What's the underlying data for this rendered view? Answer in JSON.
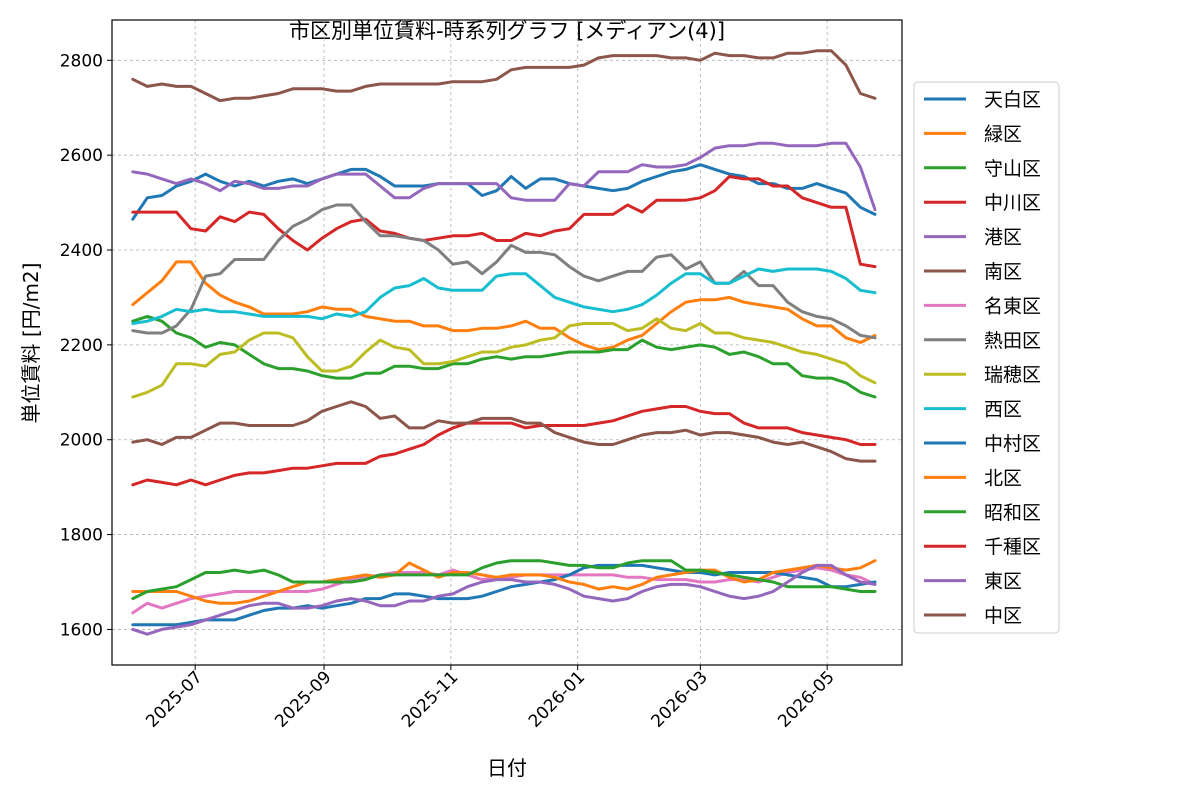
{
  "chart_data": {
    "type": "line",
    "title": "市区別単位賃料-時系列グラフ [メディアン(4)]",
    "xlabel": "日付",
    "ylabel": "単位賃料 [円/m2]",
    "xlim": [
      "2025-05-22",
      "2026-06-06"
    ],
    "ylim": [
      1525,
      2885
    ],
    "x_ticks": [
      "2025-07-01",
      "2025-09-01",
      "2025-11-01",
      "2026-01-01",
      "2026-03-01",
      "2026-05-01"
    ],
    "x_tick_labels": [
      "2025-07",
      "2025-09",
      "2025-11",
      "2026-01",
      "2026-03",
      "2026-05"
    ],
    "y_ticks": [
      1600,
      1800,
      2000,
      2200,
      2400,
      2600,
      2800
    ],
    "y_tick_labels": [
      "1600",
      "1800",
      "2000",
      "2200",
      "2400",
      "2600",
      "2800"
    ],
    "grid": true,
    "legend_position": "outside-right",
    "x_dates": [
      "2025-06-01",
      "2025-06-08",
      "2025-06-15",
      "2025-06-22",
      "2025-06-29",
      "2025-07-06",
      "2025-07-13",
      "2025-07-20",
      "2025-07-27",
      "2025-08-03",
      "2025-08-10",
      "2025-08-17",
      "2025-08-24",
      "2025-08-31",
      "2025-09-07",
      "2025-09-14",
      "2025-09-21",
      "2025-09-28",
      "2025-10-05",
      "2025-10-12",
      "2025-10-19",
      "2025-10-26",
      "2025-11-02",
      "2025-11-09",
      "2025-11-16",
      "2025-11-23",
      "2025-11-30",
      "2025-12-07",
      "2025-12-14",
      "2025-12-21",
      "2025-12-28",
      "2026-01-04",
      "2026-01-11",
      "2026-01-18",
      "2026-01-25",
      "2026-02-01",
      "2026-02-08",
      "2026-02-15",
      "2026-02-22",
      "2026-03-01",
      "2026-03-08",
      "2026-03-15",
      "2026-03-22",
      "2026-03-29",
      "2026-04-05",
      "2026-04-12",
      "2026-04-19",
      "2026-04-26",
      "2026-05-03",
      "2026-05-10",
      "2026-05-17",
      "2026-05-24"
    ],
    "series": [
      {
        "name": "天白区",
        "color": "#1f77b4",
        "values": [
          2465,
          2510,
          2515,
          2535,
          2545,
          2560,
          2545,
          2535,
          2545,
          2535,
          2545,
          2550,
          2540,
          2550,
          2560,
          2570,
          2570,
          2555,
          2535,
          2535,
          2535,
          2540,
          2540,
          2540,
          2515,
          2525,
          2555,
          2530,
          2550,
          2550,
          2540,
          2535,
          2530,
          2525,
          2530,
          2545,
          2555,
          2565,
          2570,
          2580,
          2570,
          2560,
          2555,
          2540,
          2540,
          2530,
          2530,
          2540,
          2530,
          2520,
          2490,
          2475
        ]
      },
      {
        "name": "緑区",
        "color": "#ff7f0e",
        "values": [
          2285,
          2310,
          2335,
          2375,
          2375,
          2330,
          2305,
          2290,
          2280,
          2265,
          2265,
          2265,
          2270,
          2280,
          2275,
          2275,
          2260,
          2255,
          2250,
          2250,
          2240,
          2240,
          2230,
          2230,
          2235,
          2235,
          2240,
          2250,
          2235,
          2235,
          2215,
          2200,
          2190,
          2195,
          2210,
          2220,
          2245,
          2270,
          2290,
          2295,
          2295,
          2300,
          2290,
          2285,
          2280,
          2275,
          2255,
          2240,
          2240,
          2215,
          2205,
          2220
        ]
      },
      {
        "name": "守山区",
        "color": "#2ca02c",
        "values": [
          2250,
          2260,
          2250,
          2225,
          2215,
          2195,
          2205,
          2200,
          2180,
          2160,
          2150,
          2150,
          2145,
          2135,
          2130,
          2130,
          2140,
          2140,
          2155,
          2155,
          2150,
          2150,
          2160,
          2160,
          2170,
          2175,
          2170,
          2175,
          2175,
          2180,
          2185,
          2185,
          2185,
          2190,
          2190,
          2210,
          2195,
          2190,
          2195,
          2200,
          2195,
          2180,
          2185,
          2175,
          2160,
          2160,
          2135,
          2130,
          2130,
          2120,
          2100,
          2090
        ]
      },
      {
        "name": "中川区",
        "color": "#d62728",
        "values": [
          2480,
          2480,
          2480,
          2480,
          2445,
          2440,
          2470,
          2460,
          2480,
          2475,
          2445,
          2420,
          2400,
          2425,
          2445,
          2460,
          2465,
          2440,
          2435,
          2425,
          2420,
          2425,
          2430,
          2430,
          2435,
          2420,
          2420,
          2435,
          2430,
          2440,
          2445,
          2475,
          2475,
          2475,
          2495,
          2480,
          2505,
          2505,
          2505,
          2510,
          2525,
          2555,
          2550,
          2550,
          2535,
          2535,
          2510,
          2500,
          2490,
          2490,
          2370,
          2365
        ]
      },
      {
        "name": "港区",
        "color": "#9467bd",
        "values": [
          2565,
          2560,
          2550,
          2540,
          2550,
          2540,
          2525,
          2545,
          2540,
          2530,
          2530,
          2535,
          2535,
          2550,
          2560,
          2560,
          2560,
          2535,
          2510,
          2510,
          2530,
          2540,
          2540,
          2540,
          2540,
          2540,
          2510,
          2505,
          2505,
          2505,
          2540,
          2535,
          2565,
          2565,
          2565,
          2580,
          2575,
          2575,
          2580,
          2595,
          2615,
          2620,
          2620,
          2625,
          2625,
          2620,
          2620,
          2620,
          2625,
          2625,
          2575,
          2485
        ]
      },
      {
        "name": "南区",
        "color": "#8c564b",
        "values": [
          2760,
          2745,
          2750,
          2745,
          2745,
          2730,
          2715,
          2720,
          2720,
          2725,
          2730,
          2740,
          2740,
          2740,
          2735,
          2735,
          2745,
          2750,
          2750,
          2750,
          2750,
          2750,
          2755,
          2755,
          2755,
          2760,
          2780,
          2785,
          2785,
          2785,
          2785,
          2790,
          2805,
          2810,
          2810,
          2810,
          2810,
          2805,
          2805,
          2800,
          2815,
          2810,
          2810,
          2805,
          2805,
          2815,
          2815,
          2820,
          2820,
          2790,
          2730,
          2720
        ]
      },
      {
        "name": "名東区",
        "color": "#e377c2",
        "values": [
          1635,
          1655,
          1645,
          1655,
          1665,
          1670,
          1675,
          1680,
          1680,
          1680,
          1680,
          1680,
          1680,
          1685,
          1695,
          1705,
          1710,
          1715,
          1720,
          1720,
          1720,
          1715,
          1725,
          1715,
          1705,
          1710,
          1710,
          1715,
          1715,
          1715,
          1715,
          1715,
          1715,
          1715,
          1710,
          1710,
          1705,
          1705,
          1705,
          1700,
          1700,
          1705,
          1705,
          1700,
          1710,
          1720,
          1725,
          1730,
          1725,
          1715,
          1710,
          1695
        ]
      },
      {
        "name": "熱田区",
        "color": "#7f7f7f",
        "values": [
          2230,
          2225,
          2225,
          2240,
          2275,
          2345,
          2350,
          2380,
          2380,
          2380,
          2420,
          2450,
          2465,
          2485,
          2495,
          2495,
          2460,
          2430,
          2430,
          2425,
          2420,
          2400,
          2370,
          2375,
          2350,
          2375,
          2410,
          2395,
          2395,
          2390,
          2365,
          2345,
          2335,
          2345,
          2355,
          2355,
          2385,
          2390,
          2360,
          2375,
          2330,
          2330,
          2355,
          2325,
          2325,
          2290,
          2270,
          2260,
          2255,
          2240,
          2220,
          2215
        ]
      },
      {
        "name": "瑞穂区",
        "color": "#bcbd22",
        "values": [
          2090,
          2100,
          2115,
          2160,
          2160,
          2155,
          2180,
          2185,
          2210,
          2225,
          2225,
          2215,
          2175,
          2145,
          2145,
          2155,
          2185,
          2210,
          2195,
          2190,
          2160,
          2160,
          2165,
          2175,
          2185,
          2185,
          2195,
          2200,
          2210,
          2215,
          2240,
          2245,
          2245,
          2245,
          2230,
          2235,
          2255,
          2235,
          2230,
          2245,
          2225,
          2225,
          2215,
          2210,
          2205,
          2195,
          2185,
          2180,
          2170,
          2160,
          2135,
          2120
        ]
      },
      {
        "name": "西区",
        "color": "#17becf",
        "values": [
          2245,
          2250,
          2260,
          2275,
          2270,
          2275,
          2270,
          2270,
          2265,
          2260,
          2260,
          2260,
          2260,
          2255,
          2265,
          2260,
          2270,
          2300,
          2320,
          2325,
          2340,
          2320,
          2315,
          2315,
          2315,
          2345,
          2350,
          2350,
          2325,
          2300,
          2290,
          2280,
          2275,
          2270,
          2275,
          2285,
          2305,
          2330,
          2350,
          2350,
          2330,
          2330,
          2345,
          2360,
          2355,
          2360,
          2360,
          2360,
          2355,
          2340,
          2315,
          2310
        ]
      },
      {
        "name": "中村区",
        "color": "#1f77b4",
        "values": [
          1610,
          1610,
          1610,
          1610,
          1615,
          1620,
          1620,
          1620,
          1630,
          1640,
          1645,
          1645,
          1650,
          1645,
          1650,
          1655,
          1665,
          1665,
          1675,
          1675,
          1670,
          1665,
          1665,
          1665,
          1670,
          1680,
          1690,
          1695,
          1700,
          1705,
          1715,
          1730,
          1735,
          1735,
          1735,
          1735,
          1730,
          1725,
          1720,
          1720,
          1715,
          1720,
          1720,
          1720,
          1720,
          1715,
          1710,
          1705,
          1690,
          1690,
          1695,
          1700
        ]
      },
      {
        "name": "北区",
        "color": "#ff7f0e",
        "values": [
          1680,
          1680,
          1680,
          1680,
          1670,
          1660,
          1655,
          1655,
          1660,
          1670,
          1680,
          1690,
          1700,
          1700,
          1705,
          1710,
          1715,
          1710,
          1715,
          1740,
          1725,
          1710,
          1720,
          1720,
          1715,
          1710,
          1715,
          1715,
          1715,
          1710,
          1700,
          1695,
          1685,
          1690,
          1685,
          1695,
          1710,
          1715,
          1720,
          1725,
          1725,
          1710,
          1700,
          1705,
          1720,
          1725,
          1730,
          1735,
          1730,
          1725,
          1730,
          1745
        ]
      },
      {
        "name": "昭和区",
        "color": "#2ca02c",
        "values": [
          1665,
          1680,
          1685,
          1690,
          1705,
          1720,
          1720,
          1725,
          1720,
          1725,
          1715,
          1700,
          1700,
          1700,
          1700,
          1700,
          1705,
          1715,
          1715,
          1715,
          1715,
          1715,
          1715,
          1715,
          1730,
          1740,
          1745,
          1745,
          1745,
          1740,
          1735,
          1735,
          1730,
          1730,
          1740,
          1745,
          1745,
          1745,
          1725,
          1725,
          1720,
          1715,
          1710,
          1705,
          1700,
          1690,
          1690,
          1690,
          1690,
          1685,
          1680,
          1680
        ]
      },
      {
        "name": "千種区",
        "color": "#d62728",
        "values": [
          1905,
          1915,
          1910,
          1905,
          1915,
          1905,
          1915,
          1925,
          1930,
          1930,
          1935,
          1940,
          1940,
          1945,
          1950,
          1950,
          1950,
          1965,
          1970,
          1980,
          1990,
          2010,
          2025,
          2035,
          2035,
          2035,
          2035,
          2025,
          2030,
          2030,
          2030,
          2030,
          2035,
          2040,
          2050,
          2060,
          2065,
          2070,
          2070,
          2060,
          2055,
          2055,
          2035,
          2025,
          2025,
          2025,
          2015,
          2010,
          2005,
          2000,
          1990,
          1990
        ]
      },
      {
        "name": "東区",
        "color": "#9467bd",
        "values": [
          1600,
          1590,
          1600,
          1605,
          1610,
          1620,
          1630,
          1640,
          1650,
          1655,
          1655,
          1645,
          1645,
          1650,
          1660,
          1665,
          1660,
          1650,
          1650,
          1660,
          1660,
          1670,
          1675,
          1690,
          1700,
          1705,
          1705,
          1700,
          1700,
          1695,
          1685,
          1670,
          1665,
          1660,
          1665,
          1680,
          1690,
          1695,
          1695,
          1690,
          1680,
          1670,
          1665,
          1670,
          1680,
          1700,
          1720,
          1735,
          1735,
          1715,
          1700,
          1695
        ]
      },
      {
        "name": "中区",
        "color": "#8c564b",
        "values": [
          1995,
          2000,
          1990,
          2005,
          2005,
          2020,
          2035,
          2035,
          2030,
          2030,
          2030,
          2030,
          2040,
          2060,
          2070,
          2080,
          2070,
          2045,
          2050,
          2025,
          2025,
          2040,
          2035,
          2035,
          2045,
          2045,
          2045,
          2035,
          2035,
          2015,
          2005,
          1995,
          1990,
          1990,
          2000,
          2010,
          2015,
          2015,
          2020,
          2010,
          2015,
          2015,
          2010,
          2005,
          1995,
          1990,
          1995,
          1985,
          1975,
          1960,
          1955,
          1955
        ]
      }
    ]
  }
}
